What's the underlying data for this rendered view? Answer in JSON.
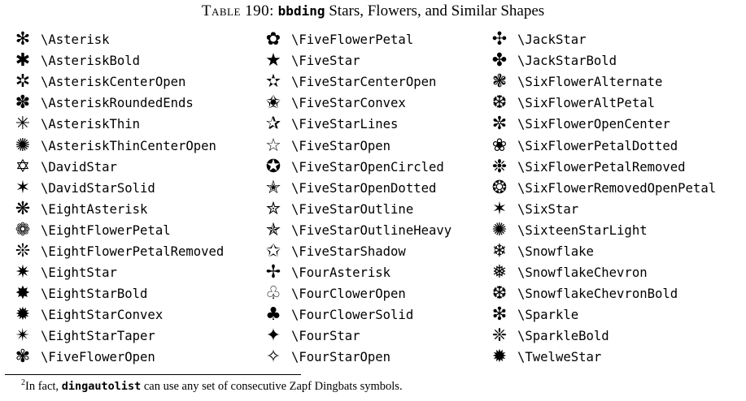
{
  "caption": {
    "label": "Table 190:",
    "package": "bbding",
    "title": "Stars, Flowers, and Similar Shapes"
  },
  "columns": [
    [
      {
        "icon": "asterisk-icon",
        "glyph": "✻",
        "cmd": "\\Asterisk"
      },
      {
        "icon": "asterisk-bold-icon",
        "glyph": "✱",
        "cmd": "\\AsteriskBold"
      },
      {
        "icon": "asterisk-center-open-icon",
        "glyph": "✲",
        "cmd": "\\AsteriskCenterOpen"
      },
      {
        "icon": "asterisk-rounded-ends-icon",
        "glyph": "✽",
        "cmd": "\\AsteriskRoundedEnds"
      },
      {
        "icon": "asterisk-thin-icon",
        "glyph": "✳",
        "cmd": "\\AsteriskThin"
      },
      {
        "icon": "asterisk-thin-center-open-icon",
        "glyph": "✺",
        "cmd": "\\AsteriskThinCenterOpen"
      },
      {
        "icon": "david-star-icon",
        "glyph": "✡",
        "cmd": "\\DavidStar"
      },
      {
        "icon": "david-star-solid-icon",
        "glyph": "✶",
        "cmd": "\\DavidStarSolid"
      },
      {
        "icon": "eight-asterisk-icon",
        "glyph": "❋",
        "cmd": "\\EightAsterisk"
      },
      {
        "icon": "eight-flower-petal-icon",
        "glyph": "❁",
        "cmd": "\\EightFlowerPetal"
      },
      {
        "icon": "eight-flower-petal-removed-icon",
        "glyph": "❊",
        "cmd": "\\EightFlowerPetalRemoved"
      },
      {
        "icon": "eight-star-icon",
        "glyph": "✷",
        "cmd": "\\EightStar"
      },
      {
        "icon": "eight-star-bold-icon",
        "glyph": "✸",
        "cmd": "\\EightStarBold"
      },
      {
        "icon": "eight-star-convex-icon",
        "glyph": "✹",
        "cmd": "\\EightStarConvex"
      },
      {
        "icon": "eight-star-taper-icon",
        "glyph": "✴",
        "cmd": "\\EightStarTaper"
      },
      {
        "icon": "five-flower-open-icon",
        "glyph": "✾",
        "cmd": "\\FiveFlowerOpen"
      }
    ],
    [
      {
        "icon": "five-flower-petal-icon",
        "glyph": "✿",
        "cmd": "\\FiveFlowerPetal"
      },
      {
        "icon": "five-star-icon",
        "glyph": "★",
        "cmd": "\\FiveStar"
      },
      {
        "icon": "five-star-center-open-icon",
        "glyph": "✫",
        "cmd": "\\FiveStarCenterOpen"
      },
      {
        "icon": "five-star-convex-icon",
        "glyph": "✬",
        "cmd": "\\FiveStarConvex"
      },
      {
        "icon": "five-star-lines-icon",
        "glyph": "✰",
        "cmd": "\\FiveStarLines"
      },
      {
        "icon": "five-star-open-icon",
        "glyph": "☆",
        "cmd": "\\FiveStarOpen"
      },
      {
        "icon": "five-star-open-circled-icon",
        "glyph": "✪",
        "cmd": "\\FiveStarOpenCircled"
      },
      {
        "icon": "five-star-open-dotted-icon",
        "glyph": "✭",
        "cmd": "\\FiveStarOpenDotted"
      },
      {
        "icon": "five-star-outline-icon",
        "glyph": "✮",
        "cmd": "\\FiveStarOutline"
      },
      {
        "icon": "five-star-outline-heavy-icon",
        "glyph": "✯",
        "cmd": "\\FiveStarOutlineHeavy"
      },
      {
        "icon": "five-star-shadow-icon",
        "glyph": "✩",
        "cmd": "\\FiveStarShadow"
      },
      {
        "icon": "four-asterisk-icon",
        "glyph": "✢",
        "cmd": "\\FourAsterisk"
      },
      {
        "icon": "four-clover-open-icon",
        "glyph": "♧",
        "cmd": "\\FourClowerOpen"
      },
      {
        "icon": "four-clover-solid-icon",
        "glyph": "♣",
        "cmd": "\\FourClowerSolid"
      },
      {
        "icon": "four-star-icon",
        "glyph": "✦",
        "cmd": "\\FourStar"
      },
      {
        "icon": "four-star-open-icon",
        "glyph": "✧",
        "cmd": "\\FourStarOpen"
      }
    ],
    [
      {
        "icon": "jack-star-icon",
        "glyph": "✣",
        "cmd": "\\JackStar"
      },
      {
        "icon": "jack-star-bold-icon",
        "glyph": "✤",
        "cmd": "\\JackStarBold"
      },
      {
        "icon": "six-flower-alternate-icon",
        "glyph": "❃",
        "cmd": "\\SixFlowerAlternate"
      },
      {
        "icon": "six-flower-alt-petal-icon",
        "glyph": "❆",
        "cmd": "\\SixFlowerAltPetal"
      },
      {
        "icon": "six-flower-open-center-icon",
        "glyph": "✼",
        "cmd": "\\SixFlowerOpenCenter"
      },
      {
        "icon": "six-flower-petal-dotted-icon",
        "glyph": "❀",
        "cmd": "\\SixFlowerPetalDotted"
      },
      {
        "icon": "six-flower-petal-removed-icon",
        "glyph": "❉",
        "cmd": "\\SixFlowerPetalRemoved"
      },
      {
        "icon": "six-flower-removed-open-petal-icon",
        "glyph": "❂",
        "cmd": "\\SixFlowerRemovedOpenPetal"
      },
      {
        "icon": "six-star-icon",
        "glyph": "✶",
        "cmd": "\\SixStar"
      },
      {
        "icon": "sixteen-star-light-icon",
        "glyph": "✺",
        "cmd": "\\SixteenStarLight"
      },
      {
        "icon": "snowflake-icon",
        "glyph": "❄",
        "cmd": "\\Snowflake"
      },
      {
        "icon": "snowflake-chevron-icon",
        "glyph": "❅",
        "cmd": "\\SnowflakeChevron"
      },
      {
        "icon": "snowflake-chevron-bold-icon",
        "glyph": "❆",
        "cmd": "\\SnowflakeChevronBold"
      },
      {
        "icon": "sparkle-icon",
        "glyph": "❇",
        "cmd": "\\Sparkle"
      },
      {
        "icon": "sparkle-bold-icon",
        "glyph": "❈",
        "cmd": "\\SparkleBold"
      },
      {
        "icon": "twelve-star-icon",
        "glyph": "✹",
        "cmd": "\\TwelweStar"
      }
    ]
  ],
  "footnote": {
    "mark": "2",
    "before": "In fact, ",
    "code": "dingautolist",
    "after": " can use any set of consecutive Zapf Dingbats symbols."
  }
}
